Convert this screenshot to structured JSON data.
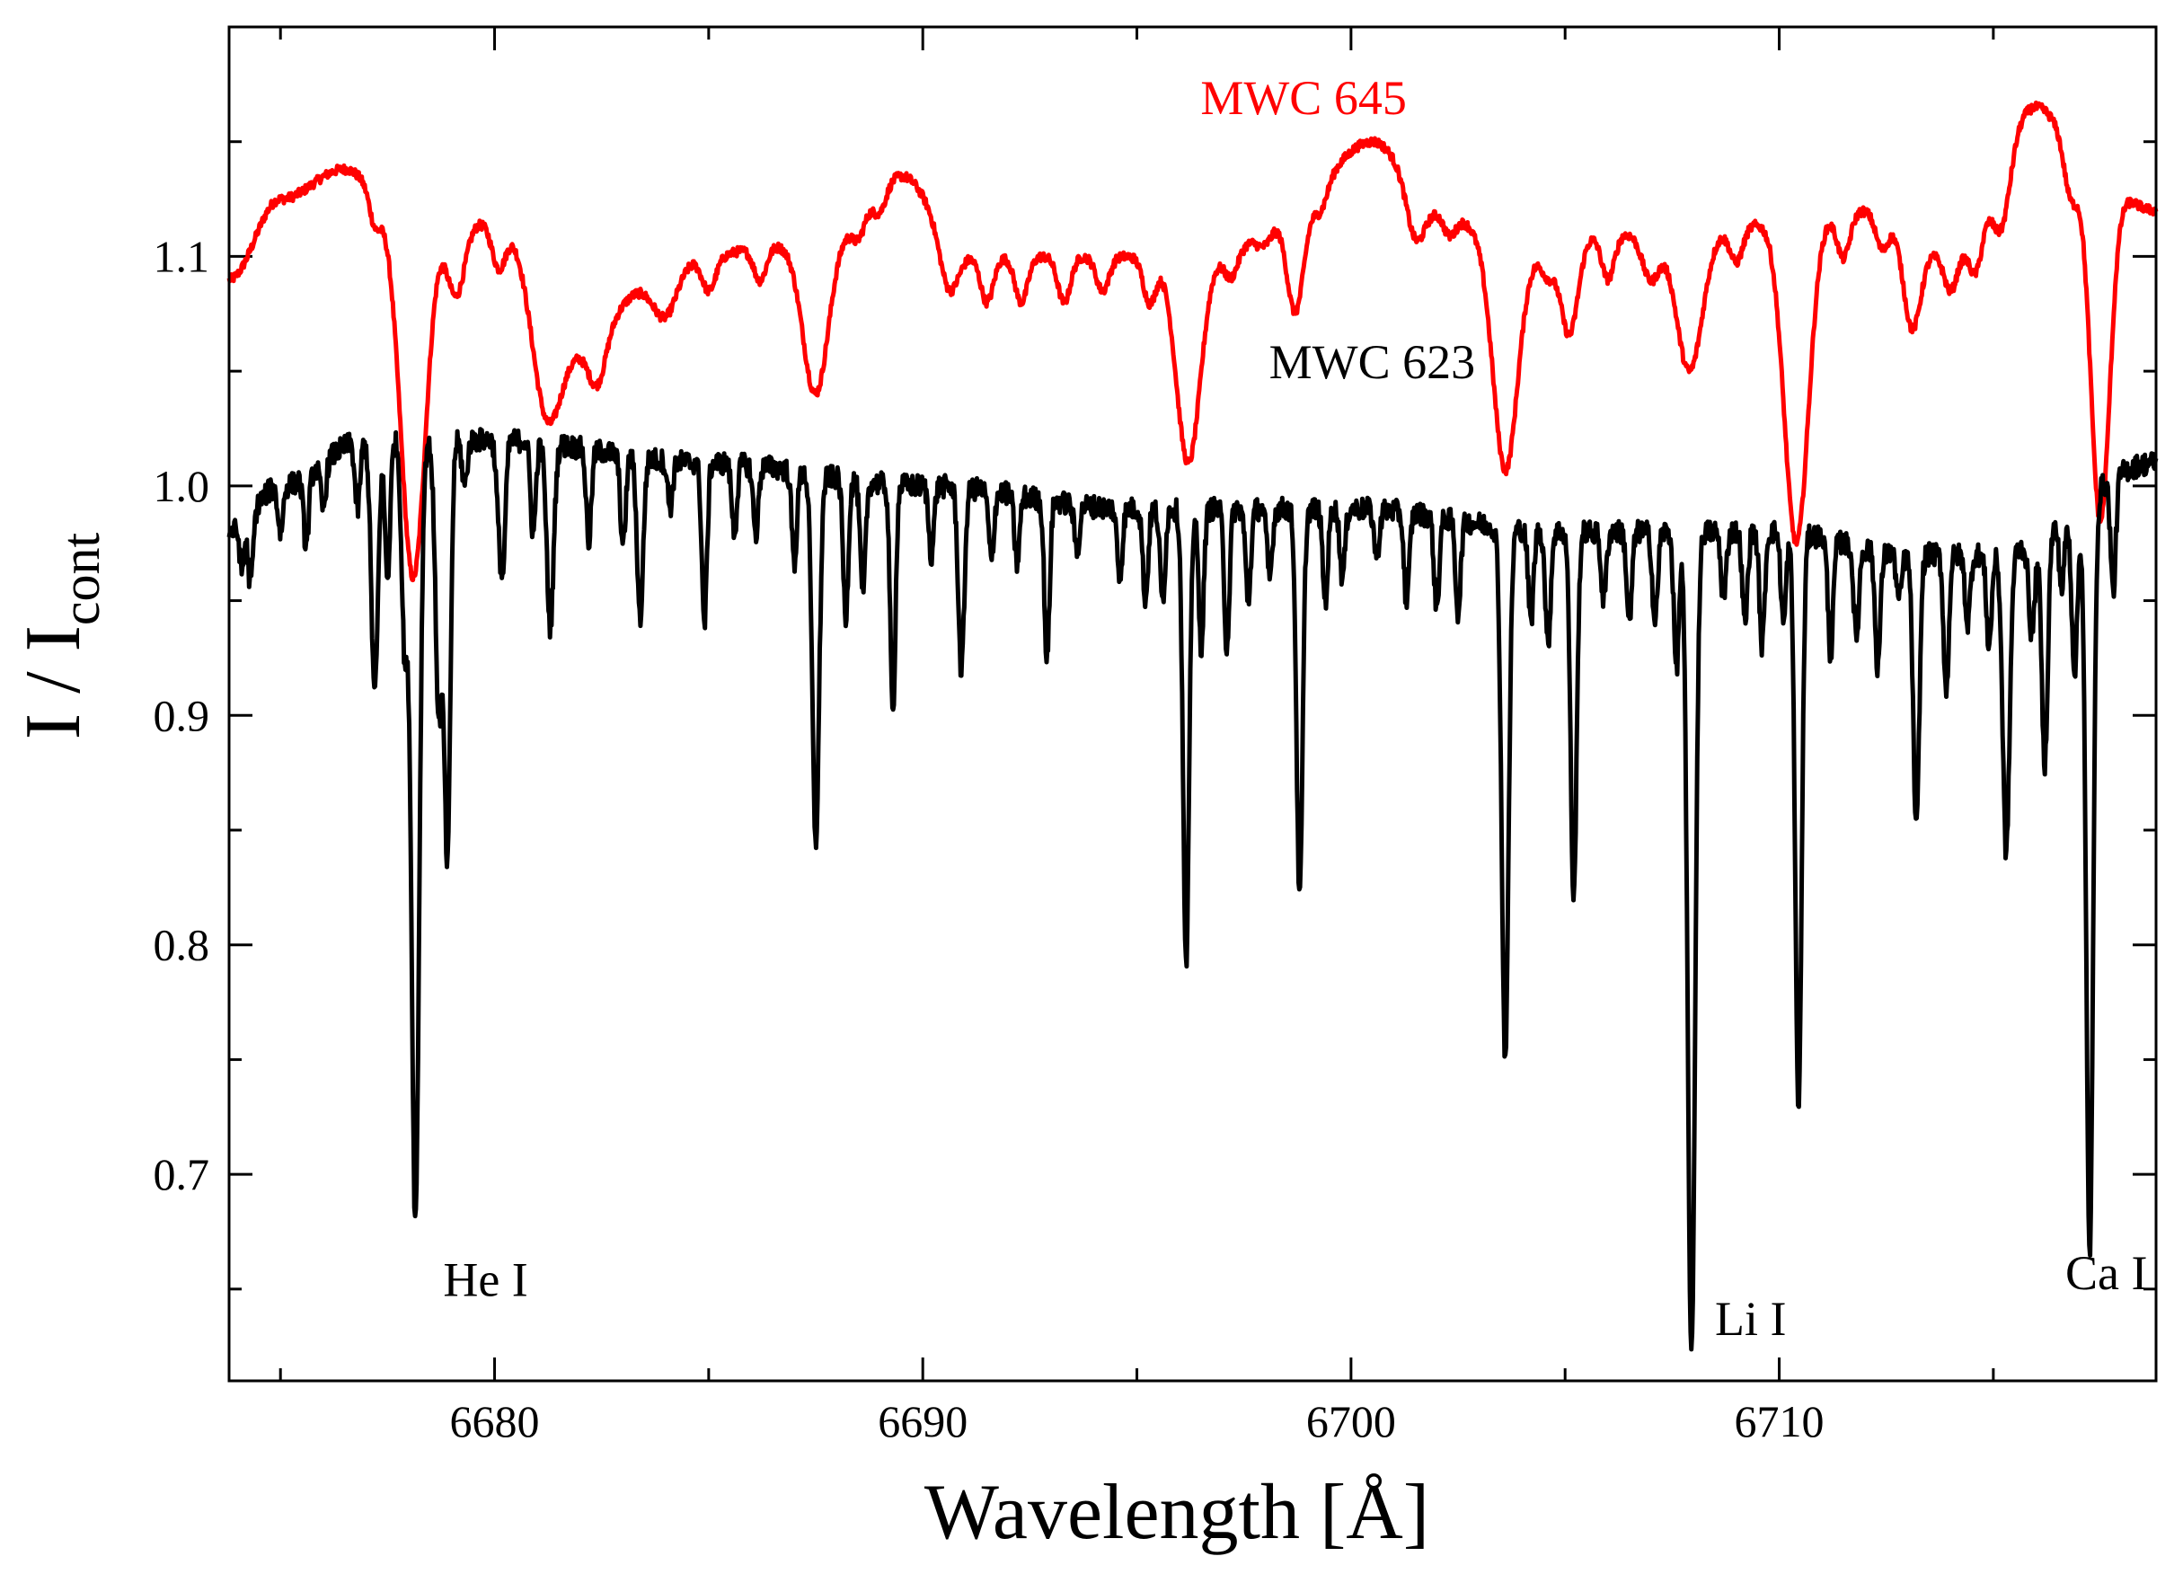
{
  "chart_data": {
    "type": "line",
    "title": "",
    "xlabel": "Wavelength [Å]",
    "ylabel_main": "I / I",
    "ylabel_sub": "cont",
    "xlim": [
      6673.8,
      6718.8
    ],
    "ylim": [
      0.61,
      1.2
    ],
    "x_ticks": [
      6680,
      6690,
      6700,
      6710
    ],
    "x_tick_labels": [
      "6680",
      "6690",
      "6700",
      "6710"
    ],
    "y_ticks": [
      0.7,
      0.8,
      0.9,
      1.0,
      1.1
    ],
    "y_tick_labels": [
      "0.7",
      "0.8",
      "0.9",
      "1.0",
      "1.1"
    ],
    "grid": false,
    "series": [
      {
        "name": "MWC 645",
        "color": "#ff0000",
        "continuum": [
          [
            6673.8,
            1.09
          ],
          [
            6675,
            1.125
          ],
          [
            6676.5,
            1.138
          ],
          [
            6678,
            1.11
          ],
          [
            6680,
            1.115
          ],
          [
            6682,
            1.06
          ],
          [
            6683.5,
            1.085
          ],
          [
            6685,
            1.1
          ],
          [
            6686.5,
            1.105
          ],
          [
            6688,
            1.112
          ],
          [
            6689.5,
            1.135
          ],
          [
            6691,
            1.1
          ],
          [
            6693,
            1.1
          ],
          [
            6695,
            1.1
          ],
          [
            6697,
            1.1
          ],
          [
            6698.5,
            1.12
          ],
          [
            6700.5,
            1.15
          ],
          [
            6702,
            1.12
          ],
          [
            6704,
            1.1
          ],
          [
            6706,
            1.11
          ],
          [
            6708,
            1.11
          ],
          [
            6710,
            1.115
          ],
          [
            6712,
            1.12
          ],
          [
            6714,
            1.1
          ],
          [
            6716,
            1.165
          ],
          [
            6717.5,
            1.13
          ],
          [
            6718.8,
            1.12
          ]
        ],
        "lines": [
          [
            6677.2,
            0.012,
            0.12
          ],
          [
            6678.1,
            0.15,
            0.28
          ],
          [
            6679.1,
            0.03,
            0.2
          ],
          [
            6680.1,
            0.02,
            0.16
          ],
          [
            6681.2,
            0.05,
            0.32
          ],
          [
            6682.4,
            0.02,
            0.2
          ],
          [
            6684,
            0.015,
            0.25
          ],
          [
            6685,
            0.015,
            0.16
          ],
          [
            6686.2,
            0.015,
            0.15
          ],
          [
            6687.5,
            0.07,
            0.3
          ],
          [
            6688.5,
            0.01,
            0.15
          ],
          [
            6689,
            0.01,
            0.15
          ],
          [
            6690.6,
            0.02,
            0.2
          ],
          [
            6691.5,
            0.02,
            0.15
          ],
          [
            6692.3,
            0.02,
            0.15
          ],
          [
            6693.3,
            0.02,
            0.15
          ],
          [
            6694.2,
            0.015,
            0.15
          ],
          [
            6695.3,
            0.02,
            0.15
          ],
          [
            6696.2,
            0.09,
            0.28
          ],
          [
            6697.2,
            0.01,
            0.15
          ],
          [
            6698,
            0.01,
            0.2
          ],
          [
            6698.7,
            0.045,
            0.2
          ],
          [
            6699.3,
            0.01,
            0.15
          ],
          [
            6701.5,
            0.02,
            0.2
          ],
          [
            6702.3,
            0.01,
            0.15
          ],
          [
            6703.6,
            0.095,
            0.28
          ],
          [
            6704.6,
            0.01,
            0.15
          ],
          [
            6705.1,
            0.04,
            0.2
          ],
          [
            6706,
            0.02,
            0.15
          ],
          [
            6707,
            0.02,
            0.2
          ],
          [
            6707.9,
            0.06,
            0.3
          ],
          [
            6709,
            0.015,
            0.15
          ],
          [
            6710.4,
            0.14,
            0.28
          ],
          [
            6711.5,
            0.02,
            0.15
          ],
          [
            6712.4,
            0.015,
            0.15
          ],
          [
            6713.1,
            0.04,
            0.2
          ],
          [
            6714,
            0.015,
            0.15
          ],
          [
            6714.6,
            0.02,
            0.15
          ],
          [
            6715.2,
            0.03,
            0.2
          ],
          [
            6716.8,
            0.02,
            0.15
          ],
          [
            6717.5,
            0.145,
            0.22
          ]
        ],
        "noise": 0.002
      },
      {
        "name": "MWC 623",
        "color": "#000000",
        "continuum": [
          [
            6673.8,
            0.98
          ],
          [
            6675,
            1.0
          ],
          [
            6677,
            1.02
          ],
          [
            6680,
            1.02
          ],
          [
            6685,
            1.01
          ],
          [
            6690,
            1.0
          ],
          [
            6695,
            0.99
          ],
          [
            6700,
            0.99
          ],
          [
            6705,
            0.98
          ],
          [
            6710,
            0.98
          ],
          [
            6713,
            0.97
          ],
          [
            6715,
            0.97
          ],
          [
            6718.8,
            1.01
          ]
        ],
        "lines": [
          [
            6674.1,
            0.02,
            0.05
          ],
          [
            6674.3,
            0.03,
            0.06
          ],
          [
            6675,
            0.02,
            0.06
          ],
          [
            6675.6,
            0.03,
            0.06
          ],
          [
            6676,
            0.02,
            0.06
          ],
          [
            6676.8,
            0.03,
            0.06
          ],
          [
            6677.2,
            0.11,
            0.08
          ],
          [
            6677.5,
            0.06,
            0.06
          ],
          [
            6677.9,
            0.09,
            0.07
          ],
          [
            6678.15,
            0.34,
            0.09
          ],
          [
            6678.7,
            0.12,
            0.08
          ],
          [
            6678.9,
            0.18,
            0.07
          ],
          [
            6679.3,
            0.02,
            0.06
          ],
          [
            6680.1,
            0.03,
            0.06
          ],
          [
            6680.2,
            0.05,
            0.06
          ],
          [
            6680.9,
            0.04,
            0.06
          ],
          [
            6681.3,
            0.08,
            0.08
          ],
          [
            6682.2,
            0.04,
            0.06
          ],
          [
            6683,
            0.04,
            0.06
          ],
          [
            6683.4,
            0.07,
            0.07
          ],
          [
            6684.1,
            0.02,
            0.06
          ],
          [
            6684.9,
            0.07,
            0.06
          ],
          [
            6685.6,
            0.03,
            0.06
          ],
          [
            6686.1,
            0.03,
            0.06
          ],
          [
            6687,
            0.04,
            0.06
          ],
          [
            6687.5,
            0.16,
            0.08
          ],
          [
            6688.2,
            0.06,
            0.06
          ],
          [
            6688.6,
            0.05,
            0.06
          ],
          [
            6689.3,
            0.1,
            0.06
          ],
          [
            6690.2,
            0.03,
            0.06
          ],
          [
            6690.9,
            0.08,
            0.07
          ],
          [
            6691.6,
            0.03,
            0.06
          ],
          [
            6692.2,
            0.03,
            0.06
          ],
          [
            6692.9,
            0.07,
            0.06
          ],
          [
            6693.6,
            0.02,
            0.06
          ],
          [
            6694.6,
            0.03,
            0.06
          ],
          [
            6695.2,
            0.04,
            0.06
          ],
          [
            6695.6,
            0.04,
            0.06
          ],
          [
            6696.15,
            0.2,
            0.07
          ],
          [
            6696.5,
            0.06,
            0.06
          ],
          [
            6697.1,
            0.06,
            0.06
          ],
          [
            6697.6,
            0.04,
            0.06
          ],
          [
            6698.1,
            0.03,
            0.06
          ],
          [
            6698.8,
            0.17,
            0.07
          ],
          [
            6699.4,
            0.04,
            0.06
          ],
          [
            6699.8,
            0.03,
            0.06
          ],
          [
            6700.6,
            0.02,
            0.06
          ],
          [
            6701.3,
            0.04,
            0.06
          ],
          [
            6702,
            0.04,
            0.06
          ],
          [
            6702.5,
            0.04,
            0.06
          ],
          [
            6703.6,
            0.23,
            0.08
          ],
          [
            6704.2,
            0.04,
            0.06
          ],
          [
            6704.6,
            0.05,
            0.06
          ],
          [
            6705.2,
            0.16,
            0.07
          ],
          [
            6705.9,
            0.03,
            0.06
          ],
          [
            6706.5,
            0.04,
            0.06
          ],
          [
            6707.1,
            0.04,
            0.06
          ],
          [
            6707.6,
            0.06,
            0.06
          ],
          [
            6707.95,
            0.36,
            0.085
          ],
          [
            6708.7,
            0.03,
            0.06
          ],
          [
            6709.2,
            0.04,
            0.06
          ],
          [
            6709.6,
            0.05,
            0.06
          ],
          [
            6710.1,
            0.04,
            0.06
          ],
          [
            6710.45,
            0.25,
            0.075
          ],
          [
            6711.2,
            0.05,
            0.06
          ],
          [
            6711.8,
            0.04,
            0.06
          ],
          [
            6712.3,
            0.05,
            0.06
          ],
          [
            6712.8,
            0.02,
            0.06
          ],
          [
            6713.2,
            0.12,
            0.07
          ],
          [
            6713.9,
            0.06,
            0.06
          ],
          [
            6714.4,
            0.03,
            0.06
          ],
          [
            6714.9,
            0.04,
            0.06
          ],
          [
            6715.3,
            0.13,
            0.08
          ],
          [
            6715.9,
            0.04,
            0.07
          ],
          [
            6716.2,
            0.1,
            0.07
          ],
          [
            6716.6,
            0.03,
            0.06
          ],
          [
            6716.9,
            0.07,
            0.07
          ],
          [
            6717.25,
            0.33,
            0.08
          ],
          [
            6717.8,
            0.05,
            0.06
          ]
        ],
        "noise": 0.005
      }
    ],
    "annotations": [
      {
        "text": "MWC 645",
        "x": 6701.3,
        "y": 1.162,
        "color": "#ff0000",
        "anchor": "end"
      },
      {
        "text": "MWC 623",
        "x": 6702.9,
        "y": 1.047,
        "color": "#000000",
        "anchor": "end"
      },
      {
        "text": "He I",
        "x": 6678.8,
        "y": 0.647,
        "color": "#000000",
        "anchor": "start"
      },
      {
        "text": "Li I",
        "x": 6708.5,
        "y": 0.63,
        "color": "#000000",
        "anchor": "start"
      },
      {
        "text": "Ca I",
        "x": 6718.6,
        "y": 0.65,
        "color": "#000000",
        "anchor": "end"
      }
    ]
  }
}
